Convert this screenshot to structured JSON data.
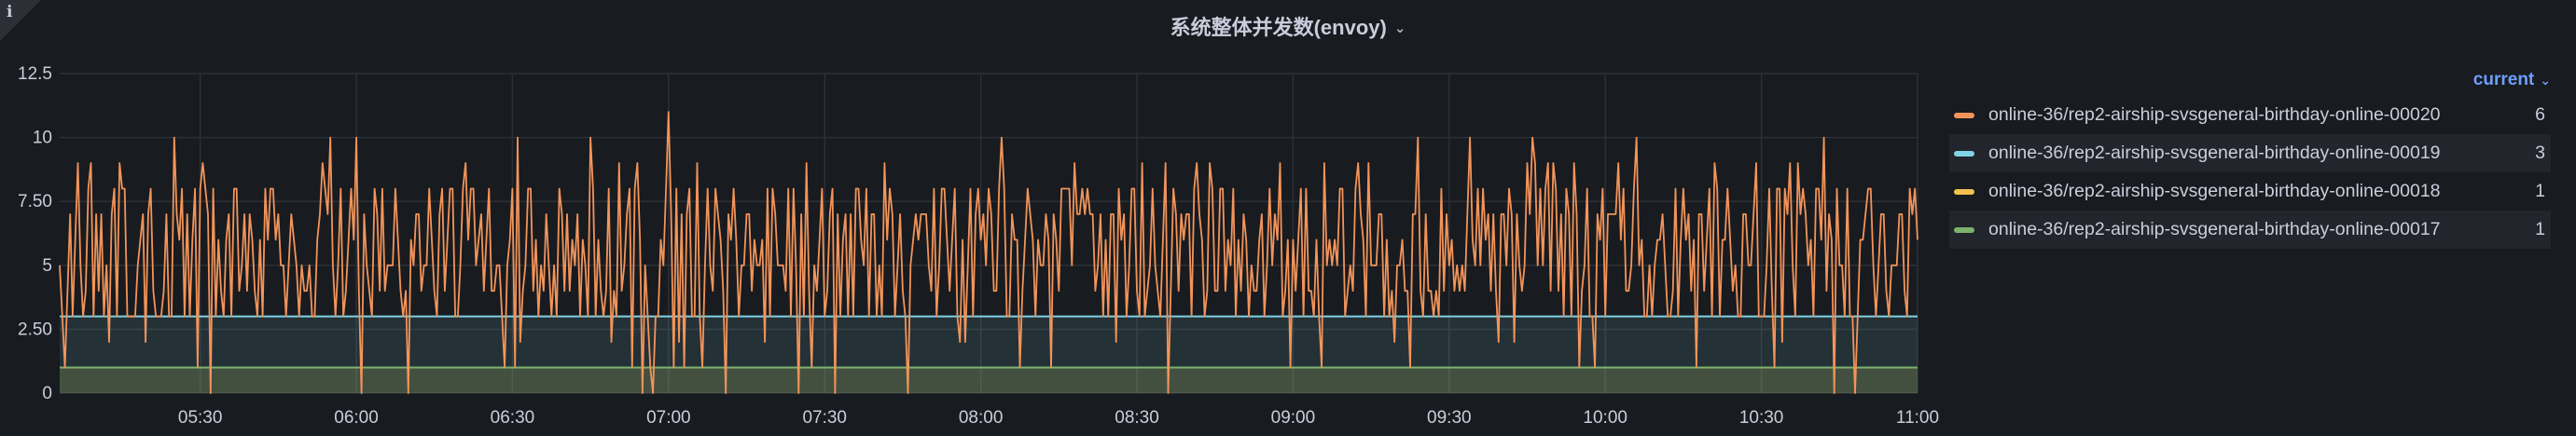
{
  "panel": {
    "title": "系统整体并发数(envoy)",
    "info_icon": "i"
  },
  "legend": {
    "sort_label": "current",
    "items": [
      {
        "name": "online-36/rep2-airship-svsgeneral-birthday-online-00020",
        "color": "#f2945a",
        "value": "6"
      },
      {
        "name": "online-36/rep2-airship-svsgeneral-birthday-online-00019",
        "color": "#7fd3e6",
        "value": "3"
      },
      {
        "name": "online-36/rep2-airship-svsgeneral-birthday-online-00018",
        "color": "#f2c14f",
        "value": "1"
      },
      {
        "name": "online-36/rep2-airship-svsgeneral-birthday-online-00017",
        "color": "#7eb26d",
        "value": "1"
      }
    ]
  },
  "chart_data": {
    "type": "line",
    "x_tick_labels": [
      "05:30",
      "06:00",
      "06:30",
      "07:00",
      "07:30",
      "08:00",
      "08:30",
      "09:00",
      "09:30",
      "10:00",
      "10:30",
      "11:00"
    ],
    "x_range": [
      "05:03",
      "11:00"
    ],
    "y_tick_labels": [
      "0",
      "2.50",
      "5",
      "7.50",
      "10",
      "12.5"
    ],
    "ylim": [
      0,
      12.5
    ],
    "grid": true,
    "legend_position": "right",
    "series": [
      {
        "name": "online-36/rep2-airship-svsgeneral-birthday-online-00020",
        "color": "#f2945a",
        "fill": false,
        "interval_minutes": 0.5,
        "stats": {
          "min": 0,
          "max": 11,
          "typical_low": 3,
          "typical_high": 8,
          "current": 6
        },
        "notable_points": [
          {
            "t": "05:09",
            "y": 9
          },
          {
            "t": "05:25",
            "y": 10
          },
          {
            "t": "05:32",
            "y": 0
          },
          {
            "t": "05:55",
            "y": 10
          },
          {
            "t": "06:00",
            "y": 10
          },
          {
            "t": "06:01",
            "y": 0
          },
          {
            "t": "06:10",
            "y": 0
          },
          {
            "t": "06:21",
            "y": 9
          },
          {
            "t": "06:31",
            "y": 10
          },
          {
            "t": "06:45",
            "y": 10
          },
          {
            "t": "06:55",
            "y": 0
          },
          {
            "t": "06:57",
            "y": 0
          },
          {
            "t": "07:00",
            "y": 11
          },
          {
            "t": "07:11",
            "y": 0
          },
          {
            "t": "07:25",
            "y": 0
          },
          {
            "t": "07:32",
            "y": 0
          },
          {
            "t": "07:46",
            "y": 0
          },
          {
            "t": "08:04",
            "y": 10
          },
          {
            "t": "08:36",
            "y": 0
          },
          {
            "t": "08:44",
            "y": 9
          },
          {
            "t": "09:06",
            "y": 9
          },
          {
            "t": "09:24",
            "y": 10
          },
          {
            "t": "09:34",
            "y": 10
          },
          {
            "t": "09:46",
            "y": 10
          },
          {
            "t": "09:50",
            "y": 9
          },
          {
            "t": "10:06",
            "y": 10
          },
          {
            "t": "10:42",
            "y": 10
          },
          {
            "t": "10:44",
            "y": 0
          },
          {
            "t": "10:48",
            "y": 0
          },
          {
            "t": "11:00",
            "y": 6
          }
        ]
      },
      {
        "name": "online-36/rep2-airship-svsgeneral-birthday-online-00019",
        "color": "#7fd3e6",
        "fill": true,
        "values_constant": 3
      },
      {
        "name": "online-36/rep2-airship-svsgeneral-birthday-online-00018",
        "color": "#f2c14f",
        "fill": true,
        "values_constant": 1
      },
      {
        "name": "online-36/rep2-airship-svsgeneral-birthday-online-00017",
        "color": "#7eb26d",
        "fill": true,
        "values_constant": 1
      }
    ]
  }
}
